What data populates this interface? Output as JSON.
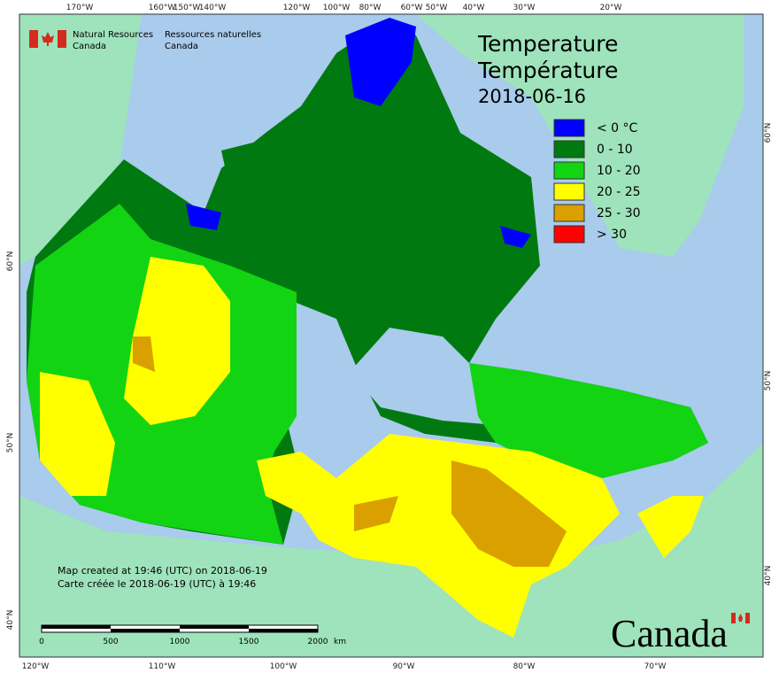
{
  "header": {
    "agency_en": [
      "Natural Resources",
      "Canada"
    ],
    "agency_fr": [
      "Ressources naturelles",
      "Canada"
    ]
  },
  "title": {
    "lines": [
      "Temperature",
      "Température"
    ],
    "date": "2018-06-16"
  },
  "legend": [
    {
      "label": "< 0 °C",
      "color": "#0000ff"
    },
    {
      "label": "0 - 10",
      "color": "#007a10"
    },
    {
      "label": "10 - 20",
      "color": "#12d412"
    },
    {
      "label": "20 - 25",
      "color": "#ffff00"
    },
    {
      "label": "25 - 30",
      "color": "#d9a000"
    },
    {
      "label": "> 30",
      "color": "#ff0000"
    }
  ],
  "axes": {
    "top": [
      "170°W",
      "160°W",
      "150°W",
      "140°W",
      "120°W",
      "100°W",
      "80°W",
      "60°W",
      "50°W",
      "40°W",
      "30°W",
      "20°W"
    ],
    "bottom": [
      "120°W",
      "110°W",
      "100°W",
      "90°W",
      "80°W",
      "70°W"
    ],
    "left": [
      "60°N",
      "50°N",
      "40°N"
    ],
    "right": [
      "60°N",
      "50°N",
      "40°N"
    ]
  },
  "scale_bar": {
    "labels": [
      "0",
      "500",
      "1000",
      "1500",
      "2000"
    ],
    "unit": "km"
  },
  "credits": [
    "Map created at 19:46 (UTC) on 2018-06-19",
    "Carte créée le 2018-06-19 (UTC) à 19:46"
  ],
  "wordmark": "Canada"
}
